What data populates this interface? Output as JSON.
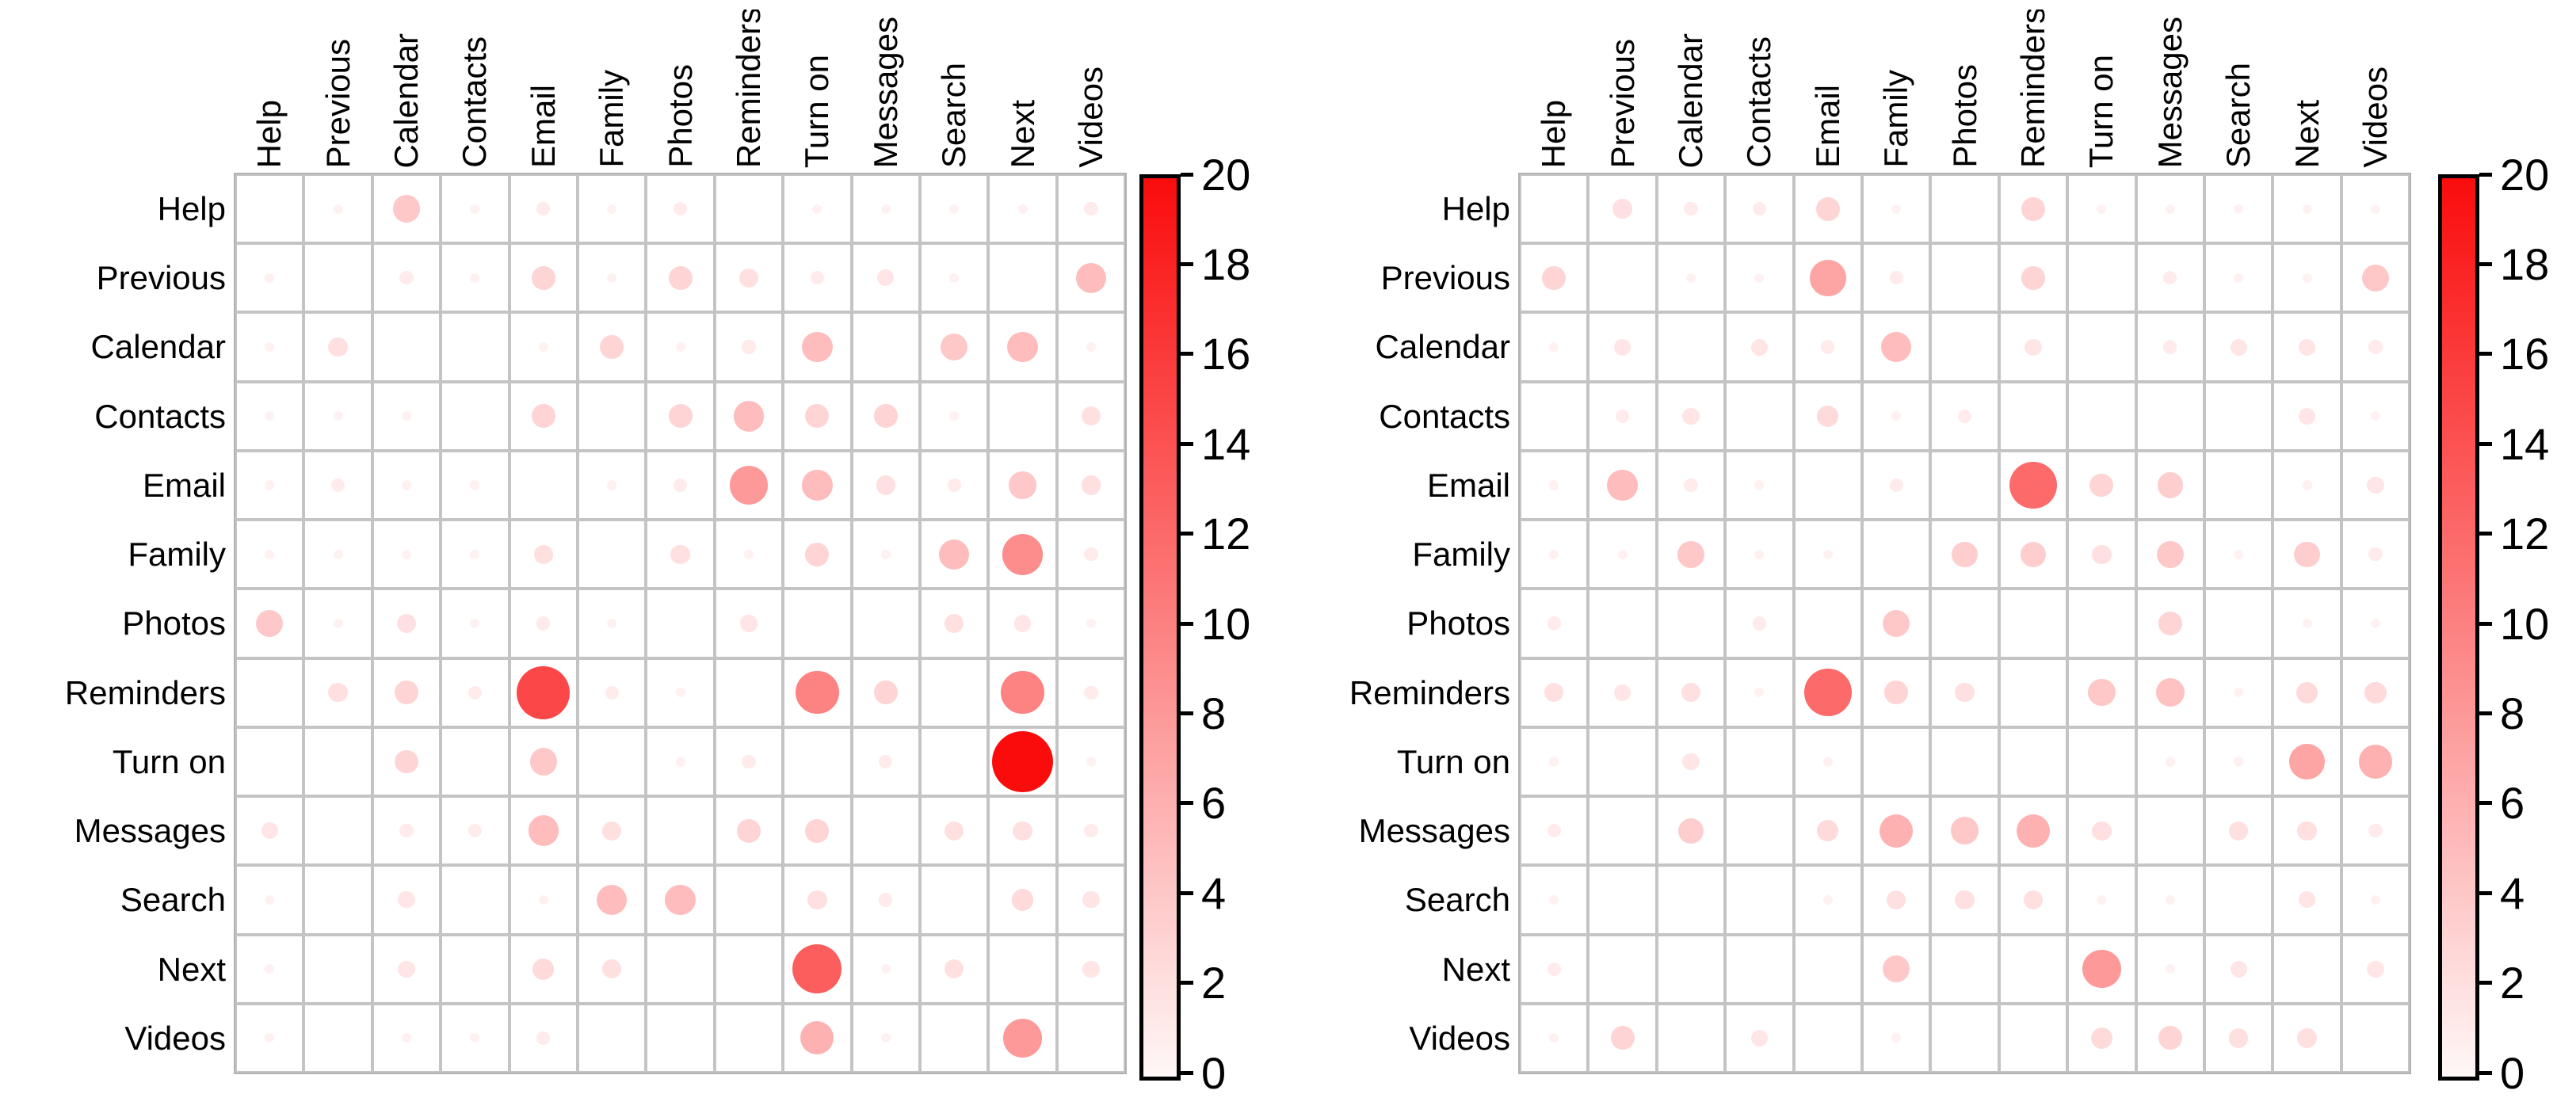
{
  "figure": {
    "description": "Two side-by-side bubble confusion matrices of voice-command categories; bubble size and red intensity encode count (0-20).",
    "background": "#ffffff"
  },
  "categories": [
    "Help",
    "Previous",
    "Calendar",
    "Contacts",
    "Email",
    "Family",
    "Photos",
    "Reminders",
    "Turn on",
    "Messages",
    "Search",
    "Next",
    "Videos"
  ],
  "colors": {
    "scale_low": "#fff7f7",
    "scale_high": "#fa0c0c",
    "grid_line": "#c4c4c4",
    "grid_outer": "#b2b2b2",
    "label_text": "#000000",
    "colorbar_border": "#000000"
  },
  "colorbar": {
    "min": 0,
    "max": 20,
    "ticks": [
      0,
      2,
      4,
      6,
      8,
      10,
      12,
      14,
      16,
      18,
      20
    ]
  },
  "chart_data": [
    {
      "type": "heatmap",
      "subtype": "bubble-matrix",
      "panel": "left",
      "x_categories": [
        "Help",
        "Previous",
        "Calendar",
        "Contacts",
        "Email",
        "Family",
        "Photos",
        "Reminders",
        "Turn on",
        "Messages",
        "Search",
        "Next",
        "Videos"
      ],
      "y_categories": [
        "Help",
        "Previous",
        "Calendar",
        "Contacts",
        "Email",
        "Family",
        "Photos",
        "Reminders",
        "Turn on",
        "Messages",
        "Search",
        "Next",
        "Videos"
      ],
      "value_range": [
        0,
        20
      ],
      "cells": [
        [
          0,
          1,
          0.5
        ],
        [
          0,
          2,
          4
        ],
        [
          0,
          3,
          0.5
        ],
        [
          0,
          4,
          1
        ],
        [
          0,
          5,
          0.5
        ],
        [
          0,
          6,
          1
        ],
        [
          0,
          8,
          0.5
        ],
        [
          0,
          9,
          0.5
        ],
        [
          0,
          10,
          0.5
        ],
        [
          0,
          11,
          0.5
        ],
        [
          0,
          12,
          1
        ],
        [
          1,
          0,
          0.5
        ],
        [
          1,
          2,
          1
        ],
        [
          1,
          3,
          0.5
        ],
        [
          1,
          4,
          3
        ],
        [
          1,
          5,
          0.5
        ],
        [
          1,
          6,
          3
        ],
        [
          1,
          7,
          2
        ],
        [
          1,
          8,
          1
        ],
        [
          1,
          9,
          1.5
        ],
        [
          1,
          10,
          0.5
        ],
        [
          1,
          12,
          5
        ],
        [
          2,
          0,
          0.5
        ],
        [
          2,
          1,
          2
        ],
        [
          2,
          4,
          0.5
        ],
        [
          2,
          5,
          3
        ],
        [
          2,
          6,
          0.5
        ],
        [
          2,
          7,
          1
        ],
        [
          2,
          8,
          5
        ],
        [
          2,
          10,
          4
        ],
        [
          2,
          11,
          5
        ],
        [
          2,
          12,
          0.5
        ],
        [
          3,
          0,
          0.5
        ],
        [
          3,
          1,
          0.5
        ],
        [
          3,
          2,
          0.5
        ],
        [
          3,
          4,
          3
        ],
        [
          3,
          6,
          3
        ],
        [
          3,
          7,
          5
        ],
        [
          3,
          8,
          3
        ],
        [
          3,
          9,
          3
        ],
        [
          3,
          10,
          0.5
        ],
        [
          3,
          12,
          2
        ],
        [
          4,
          0,
          0.5
        ],
        [
          4,
          1,
          1
        ],
        [
          4,
          2,
          0.5
        ],
        [
          4,
          3,
          0.5
        ],
        [
          4,
          5,
          0.5
        ],
        [
          4,
          6,
          1
        ],
        [
          4,
          7,
          8
        ],
        [
          4,
          8,
          5
        ],
        [
          4,
          9,
          2
        ],
        [
          4,
          10,
          1
        ],
        [
          4,
          11,
          4
        ],
        [
          4,
          12,
          2
        ],
        [
          5,
          0,
          0.5
        ],
        [
          5,
          1,
          0.5
        ],
        [
          5,
          2,
          0.5
        ],
        [
          5,
          3,
          0.5
        ],
        [
          5,
          4,
          2
        ],
        [
          5,
          6,
          2
        ],
        [
          5,
          7,
          0.5
        ],
        [
          5,
          8,
          3
        ],
        [
          5,
          9,
          0.5
        ],
        [
          5,
          10,
          5
        ],
        [
          5,
          11,
          9
        ],
        [
          5,
          12,
          1
        ],
        [
          6,
          0,
          4
        ],
        [
          6,
          1,
          0.5
        ],
        [
          6,
          2,
          2
        ],
        [
          6,
          3,
          0.5
        ],
        [
          6,
          4,
          1
        ],
        [
          6,
          5,
          0.5
        ],
        [
          6,
          7,
          1.5
        ],
        [
          6,
          10,
          2
        ],
        [
          6,
          11,
          1.5
        ],
        [
          6,
          12,
          0.5
        ],
        [
          7,
          1,
          2
        ],
        [
          7,
          2,
          3
        ],
        [
          7,
          3,
          1
        ],
        [
          7,
          4,
          15
        ],
        [
          7,
          5,
          1
        ],
        [
          7,
          6,
          0.5
        ],
        [
          7,
          8,
          10
        ],
        [
          7,
          9,
          3
        ],
        [
          7,
          11,
          10
        ],
        [
          7,
          12,
          1
        ],
        [
          8,
          2,
          3
        ],
        [
          8,
          4,
          4
        ],
        [
          8,
          6,
          0.5
        ],
        [
          8,
          7,
          1
        ],
        [
          8,
          9,
          1
        ],
        [
          8,
          11,
          20
        ],
        [
          8,
          12,
          0.5
        ],
        [
          9,
          0,
          1.5
        ],
        [
          9,
          2,
          1
        ],
        [
          9,
          3,
          1
        ],
        [
          9,
          4,
          5
        ],
        [
          9,
          5,
          2
        ],
        [
          9,
          7,
          3
        ],
        [
          9,
          8,
          3
        ],
        [
          9,
          10,
          2
        ],
        [
          9,
          11,
          2
        ],
        [
          9,
          12,
          1
        ],
        [
          10,
          0,
          0.5
        ],
        [
          10,
          2,
          1.5
        ],
        [
          10,
          4,
          0.5
        ],
        [
          10,
          5,
          5
        ],
        [
          10,
          6,
          5
        ],
        [
          10,
          8,
          2
        ],
        [
          10,
          9,
          1
        ],
        [
          10,
          11,
          2.5
        ],
        [
          10,
          12,
          1.5
        ],
        [
          11,
          0,
          0.5
        ],
        [
          11,
          2,
          1.5
        ],
        [
          11,
          4,
          2.5
        ],
        [
          11,
          5,
          2
        ],
        [
          11,
          8,
          13
        ],
        [
          11,
          9,
          0.5
        ],
        [
          11,
          10,
          2
        ],
        [
          11,
          12,
          1.5
        ],
        [
          12,
          0,
          0.5
        ],
        [
          12,
          2,
          0.5
        ],
        [
          12,
          3,
          0.5
        ],
        [
          12,
          4,
          1
        ],
        [
          12,
          8,
          6
        ],
        [
          12,
          9,
          0.5
        ],
        [
          12,
          11,
          8
        ]
      ]
    },
    {
      "type": "heatmap",
      "subtype": "bubble-matrix",
      "panel": "right",
      "x_categories": [
        "Help",
        "Previous",
        "Calendar",
        "Contacts",
        "Email",
        "Family",
        "Photos",
        "Reminders",
        "Turn on",
        "Messages",
        "Search",
        "Next",
        "Videos"
      ],
      "y_categories": [
        "Help",
        "Previous",
        "Calendar",
        "Contacts",
        "Email",
        "Family",
        "Photos",
        "Reminders",
        "Turn on",
        "Messages",
        "Search",
        "Next",
        "Videos"
      ],
      "value_range": [
        0,
        20
      ],
      "cells": [
        [
          0,
          1,
          2
        ],
        [
          0,
          2,
          1
        ],
        [
          0,
          3,
          1
        ],
        [
          0,
          4,
          3
        ],
        [
          0,
          5,
          0.5
        ],
        [
          0,
          7,
          3
        ],
        [
          0,
          8,
          0.5
        ],
        [
          0,
          9,
          0.5
        ],
        [
          0,
          10,
          0.5
        ],
        [
          0,
          11,
          0.5
        ],
        [
          0,
          12,
          0.5
        ],
        [
          1,
          0,
          3
        ],
        [
          1,
          2,
          0.5
        ],
        [
          1,
          3,
          0.5
        ],
        [
          1,
          4,
          7
        ],
        [
          1,
          5,
          1
        ],
        [
          1,
          7,
          3
        ],
        [
          1,
          9,
          1
        ],
        [
          1,
          10,
          0.5
        ],
        [
          1,
          11,
          0.5
        ],
        [
          1,
          12,
          4
        ],
        [
          2,
          0,
          0.5
        ],
        [
          2,
          1,
          1.5
        ],
        [
          2,
          3,
          1.5
        ],
        [
          2,
          4,
          1
        ],
        [
          2,
          5,
          5
        ],
        [
          2,
          7,
          1.5
        ],
        [
          2,
          9,
          1
        ],
        [
          2,
          10,
          1.5
        ],
        [
          2,
          11,
          1.5
        ],
        [
          2,
          12,
          1
        ],
        [
          3,
          1,
          1
        ],
        [
          3,
          2,
          1.5
        ],
        [
          3,
          4,
          2.5
        ],
        [
          3,
          5,
          0.5
        ],
        [
          3,
          6,
          1
        ],
        [
          3,
          11,
          1.5
        ],
        [
          3,
          12,
          0.5
        ],
        [
          4,
          0,
          0.5
        ],
        [
          4,
          1,
          5
        ],
        [
          4,
          2,
          1
        ],
        [
          4,
          3,
          0.5
        ],
        [
          4,
          5,
          1
        ],
        [
          4,
          7,
          12
        ],
        [
          4,
          8,
          3
        ],
        [
          4,
          9,
          3.5
        ],
        [
          4,
          11,
          0.5
        ],
        [
          4,
          12,
          1.5
        ],
        [
          5,
          0,
          0.5
        ],
        [
          5,
          1,
          0.5
        ],
        [
          5,
          2,
          4
        ],
        [
          5,
          3,
          0.5
        ],
        [
          5,
          4,
          0.5
        ],
        [
          5,
          6,
          3.5
        ],
        [
          5,
          7,
          3.5
        ],
        [
          5,
          8,
          2
        ],
        [
          5,
          9,
          4
        ],
        [
          5,
          10,
          0.5
        ],
        [
          5,
          11,
          3.5
        ],
        [
          5,
          12,
          1
        ],
        [
          6,
          0,
          1
        ],
        [
          6,
          3,
          1
        ],
        [
          6,
          5,
          4
        ],
        [
          6,
          9,
          3
        ],
        [
          6,
          11,
          0.5
        ],
        [
          6,
          12,
          0.5
        ],
        [
          7,
          0,
          2
        ],
        [
          7,
          1,
          1.5
        ],
        [
          7,
          2,
          2
        ],
        [
          7,
          3,
          0.5
        ],
        [
          7,
          4,
          12
        ],
        [
          7,
          5,
          3
        ],
        [
          7,
          6,
          2
        ],
        [
          7,
          8,
          4
        ],
        [
          7,
          9,
          4.5
        ],
        [
          7,
          10,
          0.5
        ],
        [
          7,
          11,
          2.5
        ],
        [
          7,
          12,
          2.5
        ],
        [
          8,
          0,
          0.5
        ],
        [
          8,
          2,
          1.5
        ],
        [
          8,
          4,
          0.5
        ],
        [
          8,
          9,
          0.5
        ],
        [
          8,
          10,
          0.5
        ],
        [
          8,
          11,
          7
        ],
        [
          8,
          12,
          6
        ],
        [
          9,
          0,
          1
        ],
        [
          9,
          2,
          3.5
        ],
        [
          9,
          4,
          2.5
        ],
        [
          9,
          5,
          6
        ],
        [
          9,
          6,
          4
        ],
        [
          9,
          7,
          6
        ],
        [
          9,
          8,
          2
        ],
        [
          9,
          10,
          2
        ],
        [
          9,
          11,
          2
        ],
        [
          9,
          12,
          1
        ],
        [
          10,
          0,
          0.5
        ],
        [
          10,
          4,
          0.5
        ],
        [
          10,
          5,
          2
        ],
        [
          10,
          6,
          2
        ],
        [
          10,
          7,
          2
        ],
        [
          10,
          8,
          0.5
        ],
        [
          10,
          9,
          0.5
        ],
        [
          10,
          11,
          1.5
        ],
        [
          10,
          12,
          0.5
        ],
        [
          11,
          0,
          1
        ],
        [
          11,
          5,
          4
        ],
        [
          11,
          8,
          8
        ],
        [
          11,
          9,
          0.5
        ],
        [
          11,
          10,
          1.5
        ],
        [
          11,
          12,
          1.5
        ],
        [
          12,
          0,
          0.5
        ],
        [
          12,
          1,
          3
        ],
        [
          12,
          3,
          1.5
        ],
        [
          12,
          5,
          0.5
        ],
        [
          12,
          8,
          2.5
        ],
        [
          12,
          9,
          3
        ],
        [
          12,
          10,
          2
        ],
        [
          12,
          11,
          2
        ]
      ]
    }
  ]
}
